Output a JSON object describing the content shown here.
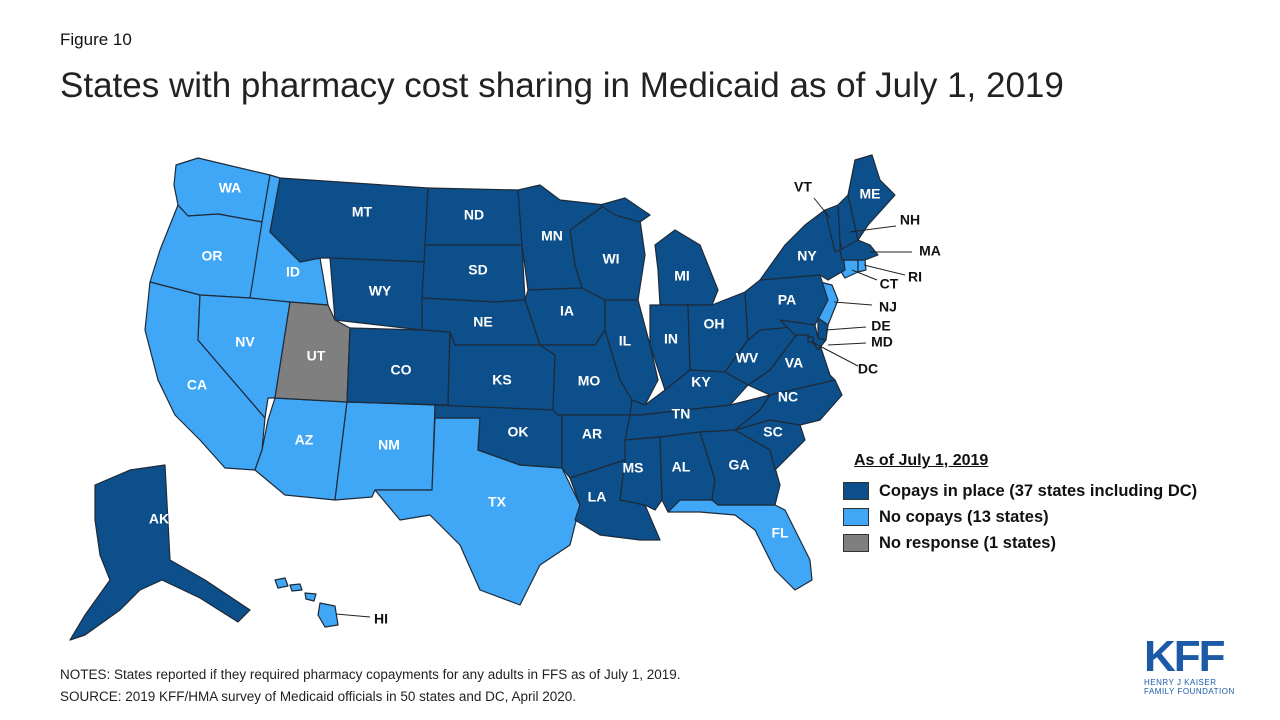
{
  "figure_label": "Figure 10",
  "title": "States with pharmacy cost sharing in Medicaid as of July 1, 2019",
  "colors": {
    "copays": "#0d4f8a",
    "no_copays": "#40a6f6",
    "no_response": "#7f7f7f",
    "border": "#1e2a38"
  },
  "legend": {
    "title": "As of July 1, 2019",
    "items": [
      {
        "key": "copays",
        "label": "Copays in place (37 states including DC)"
      },
      {
        "key": "no_copays",
        "label": "No copays (13 states)"
      },
      {
        "key": "no_response",
        "label": "No response (1 states)"
      }
    ]
  },
  "states": {
    "WA": "no_copays",
    "OR": "no_copays",
    "CA": "no_copays",
    "ID": "no_copays",
    "NV": "no_copays",
    "AZ": "no_copays",
    "NM": "no_copays",
    "TX": "no_copays",
    "FL": "no_copays",
    "NJ": "no_copays",
    "CT": "no_copays",
    "RI": "no_copays",
    "HI": "no_copays",
    "UT": "no_response",
    "MT": "copays",
    "WY": "copays",
    "CO": "copays",
    "ND": "copays",
    "SD": "copays",
    "NE": "copays",
    "KS": "copays",
    "OK": "copays",
    "MN": "copays",
    "IA": "copays",
    "MO": "copays",
    "AR": "copays",
    "LA": "copays",
    "WI": "copays",
    "IL": "copays",
    "MI": "copays",
    "IN": "copays",
    "OH": "copays",
    "KY": "copays",
    "TN": "copays",
    "MS": "copays",
    "AL": "copays",
    "GA": "copays",
    "SC": "copays",
    "NC": "copays",
    "VA": "copays",
    "WV": "copays",
    "PA": "copays",
    "NY": "copays",
    "VT": "copays",
    "NH": "copays",
    "ME": "copays",
    "MA": "copays",
    "MD": "copays",
    "DE": "copays",
    "DC": "copays",
    "AK": "copays"
  },
  "notes": "NOTES: States reported if they required pharmacy copayments for any adults in FFS as of July 1, 2019.",
  "source": "SOURCE: 2019 KFF/HMA survey of Medicaid officials in 50 states and DC, April 2020.",
  "logo": {
    "mark": "KFF",
    "line1": "HENRY J KAISER",
    "line2": "FAMILY FOUNDATION"
  }
}
